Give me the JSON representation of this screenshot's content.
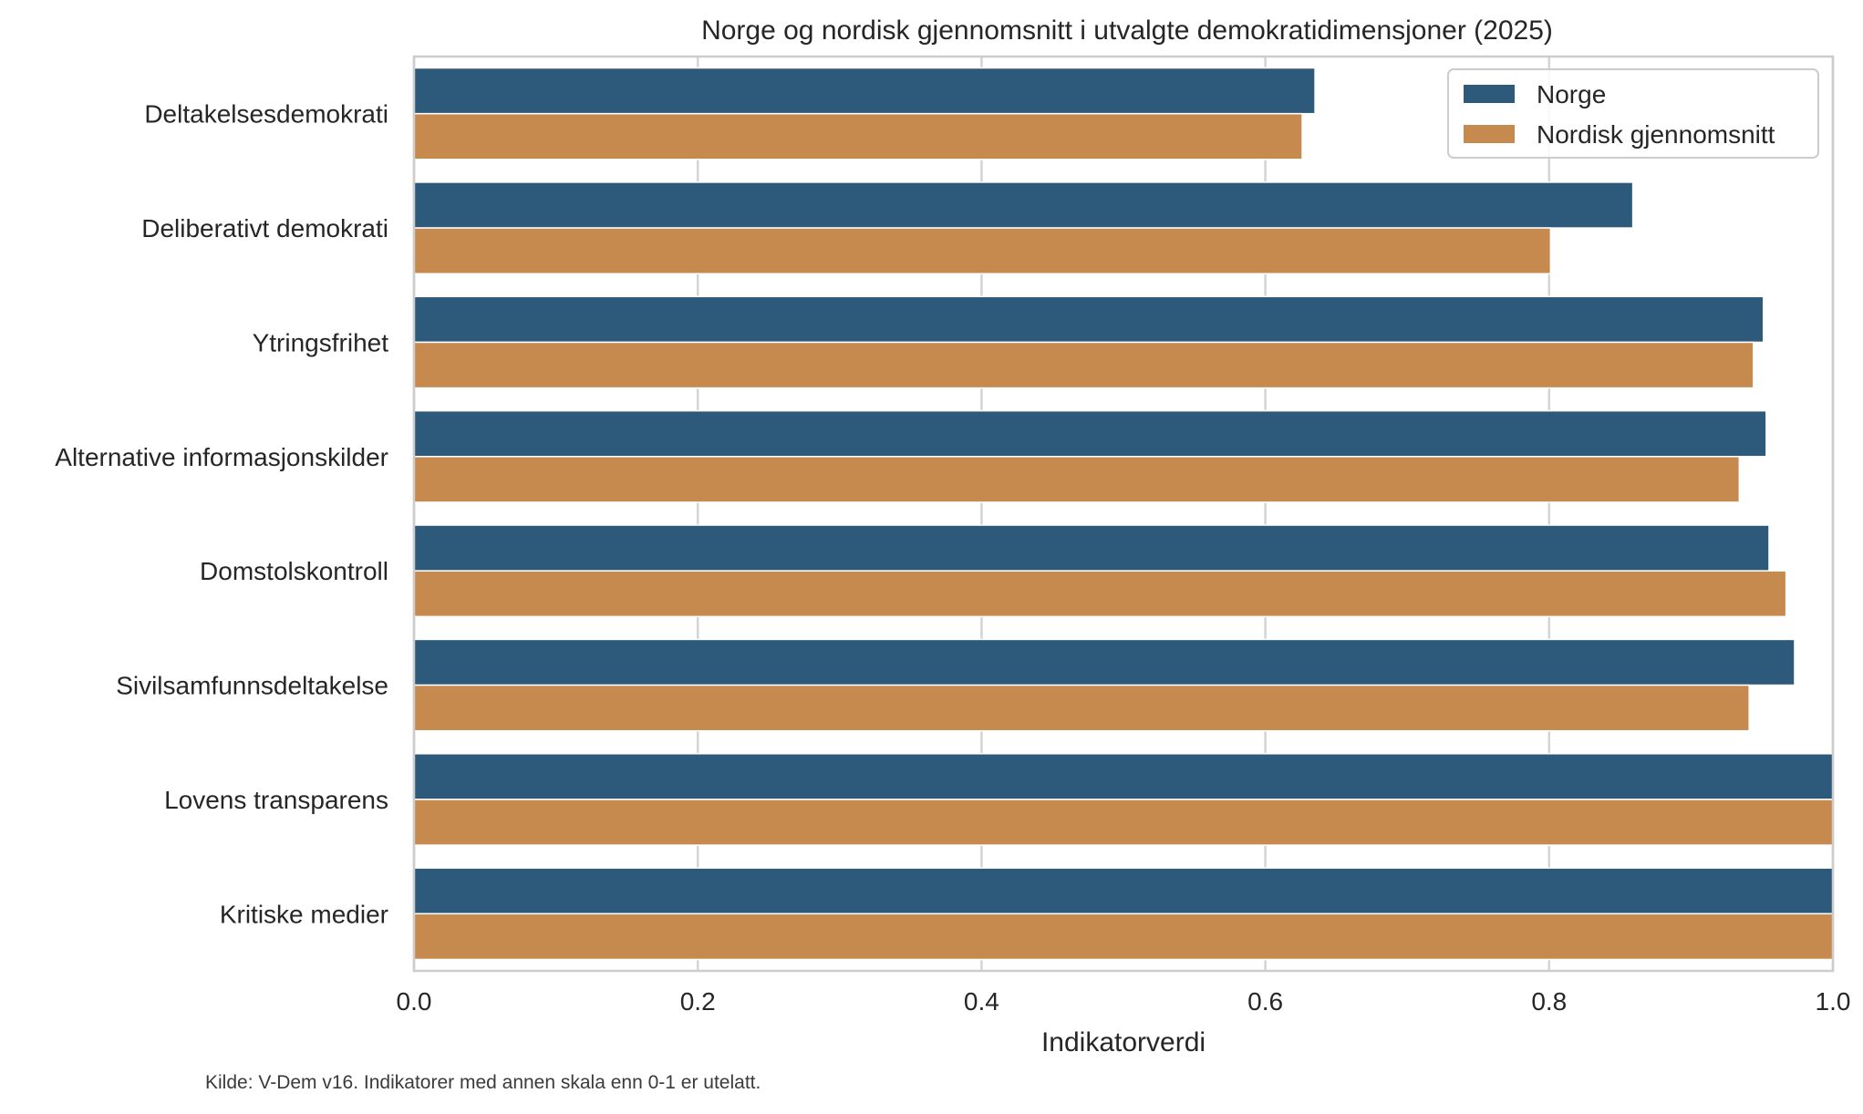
{
  "chart_data": {
    "type": "bar",
    "orientation": "horizontal",
    "title": "Norge og nordisk gjennomsnitt i utvalgte demokratidimensjoner (2025)",
    "xlabel": "Indikatorverdi",
    "ylabel": "",
    "xlim": [
      0,
      1
    ],
    "xticks": [
      "0.0",
      "0.2",
      "0.4",
      "0.6",
      "0.8",
      "1.0"
    ],
    "grid": true,
    "legend_position": "top-right",
    "categories": [
      "Deltakelsesdemokrati",
      "Deliberativt demokrati",
      "Ytringsfrihet",
      "Alternative informasjonskilder",
      "Domstolskontroll",
      "Sivilsamfunnsdeltakelse",
      "Lovens transparens",
      "Kritiske medier"
    ],
    "series": [
      {
        "name": "Norge",
        "color": "#2d5a7b",
        "values": [
          0.635,
          0.859,
          0.951,
          0.953,
          0.955,
          0.973,
          1.0,
          1.0
        ]
      },
      {
        "name": "Nordisk gjennomsnitt",
        "color": "#c68a4e",
        "values": [
          0.626,
          0.801,
          0.944,
          0.934,
          0.967,
          0.941,
          1.0,
          1.0
        ]
      }
    ]
  },
  "footnote": "Kilde: V-Dem v16. Indikatorer med annen skala enn 0-1 er utelatt."
}
